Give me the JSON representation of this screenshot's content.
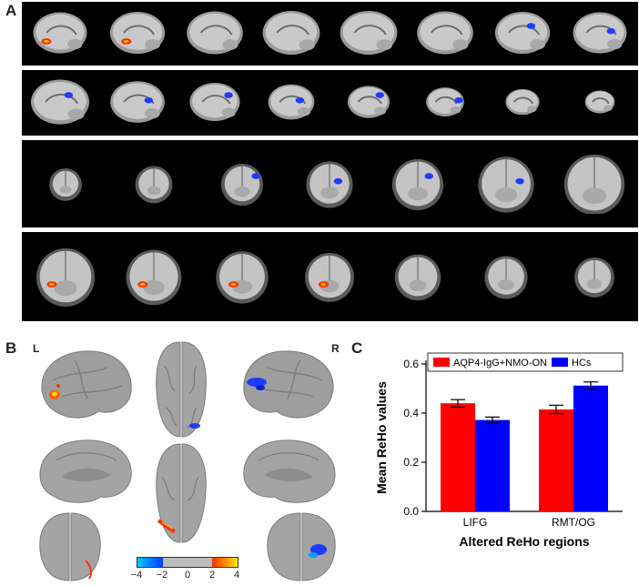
{
  "panels": {
    "a": "A",
    "b": "B",
    "c": "C"
  },
  "panel_b": {
    "left_label": "L",
    "right_label": "R",
    "colorbar_ticks": [
      "−4",
      "−2",
      "0",
      "2",
      "4"
    ],
    "colorbar_colors": [
      "#00c8ff",
      "#0040ff",
      "#bdbdbd",
      "#ff3000",
      "#ffe800"
    ]
  },
  "panel_a": {
    "rows": [
      {
        "view": "sagittal",
        "blobs": [
          "red",
          "red",
          "none",
          "none",
          "none",
          "none",
          "blue",
          "blue"
        ]
      },
      {
        "view": "sagittal",
        "blobs": [
          "blue",
          "blue",
          "blue",
          "blue",
          "blue",
          "blue",
          "none",
          "none"
        ]
      },
      {
        "view": "coronal-posterior",
        "blobs": [
          "none",
          "none",
          "blue",
          "blue",
          "blue",
          "blue",
          "none"
        ]
      },
      {
        "view": "coronal-anterior",
        "blobs": [
          "red",
          "red",
          "red",
          "red",
          "none",
          "none",
          "none"
        ]
      }
    ]
  },
  "chart_data": {
    "type": "bar",
    "categories": [
      "LIFG",
      "RMT/OG"
    ],
    "series": [
      {
        "name": "AQP4-IgG+NMO-ON",
        "values": [
          0.44,
          0.415
        ],
        "errors": [
          0.015,
          0.017
        ],
        "color": "#ff0000"
      },
      {
        "name": "HCs",
        "values": [
          0.372,
          0.512
        ],
        "errors": [
          0.012,
          0.015
        ],
        "color": "#0000ff"
      }
    ],
    "xlabel": "Altered ReHo regions",
    "ylabel": "Mean ReHo values",
    "ylim": [
      0.0,
      0.6
    ],
    "yticks": [
      "0.0",
      "0.2",
      "0.4",
      "0.6"
    ],
    "legend_position": "top",
    "grid": false
  }
}
